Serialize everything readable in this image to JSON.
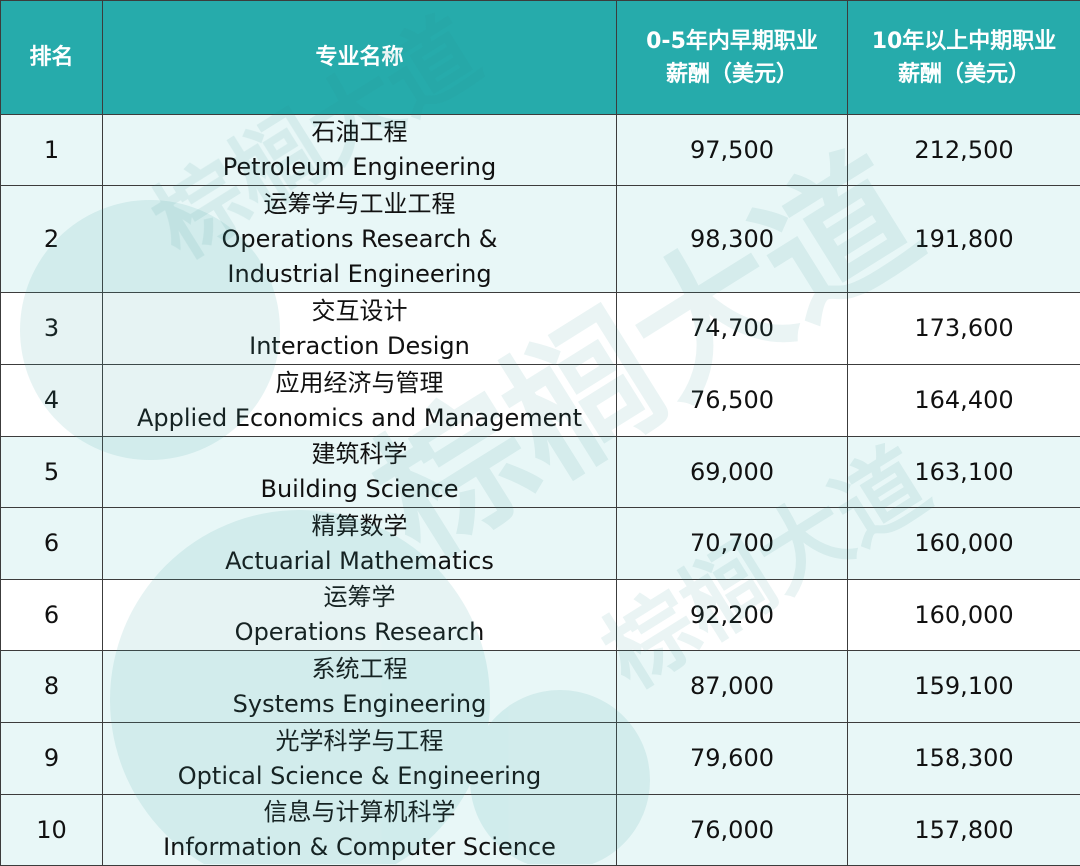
{
  "table": {
    "headers": {
      "rank": "排名",
      "major": "专业名称",
      "early_line1": "0-5年内早期职业",
      "early_line2": "薪酬（美元）",
      "mid_line1": "10年以上中期职业",
      "mid_line2": "薪酬（美元）"
    },
    "rows": [
      {
        "rank": "1",
        "cn": "石油工程",
        "en": [
          "Petroleum Engineering"
        ],
        "early": "97,500",
        "mid": "212,500"
      },
      {
        "rank": "2",
        "cn": "运筹学与工业工程",
        "en": [
          "Operations Research &",
          "Industrial Engineering"
        ],
        "early": "98,300",
        "mid": "191,800"
      },
      {
        "rank": "3",
        "cn": "交互设计",
        "en": [
          "Interaction Design"
        ],
        "early": "74,700",
        "mid": "173,600"
      },
      {
        "rank": "4",
        "cn": "应用经济与管理",
        "en": [
          "Applied Economics and Management"
        ],
        "early": "76,500",
        "mid": "164,400"
      },
      {
        "rank": "5",
        "cn": "建筑科学",
        "en": [
          "Building Science"
        ],
        "early": "69,000",
        "mid": "163,100"
      },
      {
        "rank": "6",
        "cn": "精算数学",
        "en": [
          "Actuarial Mathematics"
        ],
        "early": "70,700",
        "mid": "160,000"
      },
      {
        "rank": "6",
        "cn": "运筹学",
        "en": [
          "Operations Research"
        ],
        "early": "92,200",
        "mid": "160,000"
      },
      {
        "rank": "8",
        "cn": "系统工程",
        "en": [
          "Systems Engineering"
        ],
        "early": "87,000",
        "mid": "159,100"
      },
      {
        "rank": "9",
        "cn": "光学科学与工程",
        "en": [
          "Optical Science & Engineering"
        ],
        "early": "79,600",
        "mid": "158,300"
      },
      {
        "rank": "10",
        "cn": "信息与计算机科学",
        "en": [
          "Information & Computer Science"
        ],
        "early": "76,000",
        "mid": "157,800"
      }
    ]
  },
  "watermark": {
    "text": "棕榈大道"
  },
  "colors": {
    "header_bg": "#26abab",
    "header_text": "#ffffff",
    "row_tint": "#e8f7f7",
    "row_white": "#ffffff",
    "border": "#3c3c3c"
  }
}
